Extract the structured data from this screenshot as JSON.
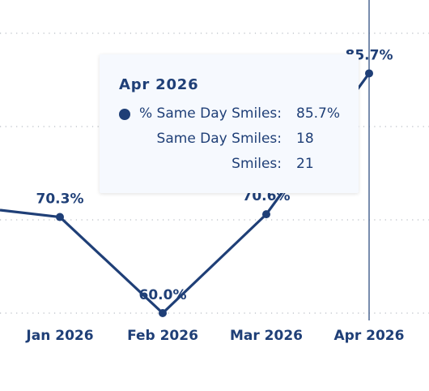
{
  "chart_data": {
    "type": "line",
    "categories": [
      "Jan 2026",
      "Feb 2026",
      "Mar 2026",
      "Apr 2026"
    ],
    "series": [
      {
        "values": [
          70.3,
          60.0,
          70.6,
          85.7
        ]
      }
    ],
    "data_labels": [
      "70.3%",
      "60.0%",
      "70.6%",
      "85.7%"
    ],
    "ylim": [
      50,
      90
    ],
    "grid": true,
    "line_color": "#1f3f77"
  },
  "tooltip": {
    "title": "Apr 2026",
    "rows": [
      {
        "label": "% Same Day Smiles:",
        "value": "85.7%",
        "marker": true
      },
      {
        "label": "Same Day Smiles:",
        "value": "18"
      },
      {
        "label": "Smiles:",
        "value": "21"
      }
    ]
  }
}
